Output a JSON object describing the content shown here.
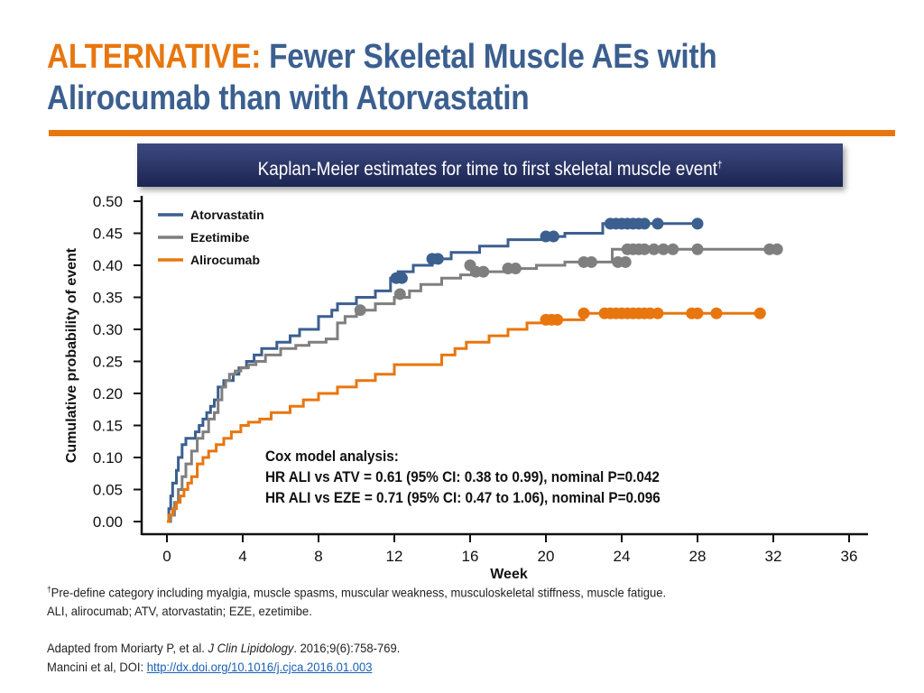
{
  "title": {
    "prefix": "ALTERNATIVE:",
    "text": "Fewer Skeletal Muscle AEs with Alirocumab than with Atorvastatin"
  },
  "banner": {
    "text": "Kaplan-Meier estimates for time to first skeletal muscle event",
    "mark": "†"
  },
  "colors": {
    "accent": "#e8760f",
    "title_blue": "#3b5f8f",
    "banner_navy": "#27325f"
  },
  "chart_data": {
    "type": "line",
    "subtype": "kaplan-meier step plot with censor markers",
    "xlabel": "Week",
    "ylabel": "Cumulative probability of event",
    "xlim": [
      0,
      37
    ],
    "ylim": [
      0,
      0.5
    ],
    "xticks": [
      0,
      4,
      8,
      12,
      16,
      20,
      24,
      28,
      32,
      36
    ],
    "yticks": [
      0.0,
      0.05,
      0.1,
      0.15,
      0.2,
      0.25,
      0.3,
      0.35,
      0.4,
      0.45,
      0.5
    ],
    "grid": false,
    "legend_position": "top-left",
    "series": [
      {
        "name": "Atorvastatin",
        "color": "#3b5f8f",
        "x": [
          0,
          0.1,
          0.2,
          0.3,
          0.5,
          0.6,
          0.8,
          1.0,
          1.3,
          1.5,
          1.7,
          1.9,
          2.1,
          2.3,
          2.5,
          2.7,
          3.0,
          3.2,
          3.5,
          3.8,
          4.2,
          4.6,
          5.0,
          5.8,
          6.5,
          7.0,
          8.0,
          8.7,
          9.0,
          10.0,
          11.0,
          11.8,
          12.2,
          13.0,
          14.0,
          15.0,
          16.5,
          18.0,
          20.0,
          21.0,
          23.0,
          28.2
        ],
        "y": [
          0,
          0.02,
          0.04,
          0.06,
          0.08,
          0.1,
          0.12,
          0.13,
          0.13,
          0.14,
          0.15,
          0.16,
          0.17,
          0.18,
          0.19,
          0.21,
          0.22,
          0.22,
          0.23,
          0.24,
          0.25,
          0.26,
          0.27,
          0.28,
          0.29,
          0.3,
          0.32,
          0.33,
          0.34,
          0.35,
          0.36,
          0.38,
          0.39,
          0.4,
          0.41,
          0.42,
          0.43,
          0.44,
          0.445,
          0.45,
          0.465,
          0.465
        ],
        "censored": [
          12.1,
          12.4,
          14.0,
          14.3,
          20.0,
          20.4,
          23.4,
          23.7,
          24.0,
          24.3,
          24.6,
          24.9,
          25.2,
          25.9,
          28.0
        ],
        "censored_y": [
          0.38,
          0.38,
          0.41,
          0.41,
          0.445,
          0.445,
          0.465,
          0.465,
          0.465,
          0.465,
          0.465,
          0.465,
          0.465,
          0.465,
          0.465
        ]
      },
      {
        "name": "Ezetimibe",
        "color": "#7f7f7f",
        "x": [
          0,
          0.2,
          0.4,
          0.6,
          0.8,
          1.0,
          1.3,
          1.6,
          1.9,
          2.2,
          2.5,
          2.7,
          2.9,
          3.1,
          3.3,
          3.6,
          3.9,
          4.3,
          4.7,
          5.2,
          6.0,
          6.8,
          7.5,
          8.4,
          9.0,
          9.4,
          10.0,
          11.0,
          12.0,
          12.8,
          13.4,
          14.5,
          15.5,
          16.5,
          18.0,
          19.5,
          21.0,
          23.5,
          32.3
        ],
        "y": [
          0,
          0.01,
          0.03,
          0.05,
          0.07,
          0.09,
          0.11,
          0.13,
          0.14,
          0.16,
          0.17,
          0.19,
          0.21,
          0.22,
          0.23,
          0.235,
          0.24,
          0.245,
          0.25,
          0.26,
          0.27,
          0.275,
          0.28,
          0.285,
          0.31,
          0.32,
          0.33,
          0.34,
          0.35,
          0.36,
          0.37,
          0.38,
          0.385,
          0.39,
          0.395,
          0.4,
          0.405,
          0.425,
          0.425
        ],
        "censored": [
          10.2,
          12.3,
          16.0,
          16.3,
          16.7,
          18.0,
          18.4,
          22.0,
          22.4,
          23.8,
          24.2,
          24.3,
          24.6,
          24.9,
          25.2,
          25.7,
          26.2,
          26.7,
          28.0,
          31.8,
          32.2
        ],
        "censored_y": [
          0.33,
          0.355,
          0.4,
          0.39,
          0.39,
          0.395,
          0.395,
          0.405,
          0.405,
          0.405,
          0.405,
          0.425,
          0.425,
          0.425,
          0.425,
          0.425,
          0.425,
          0.425,
          0.425,
          0.425,
          0.425
        ]
      },
      {
        "name": "Alirocumab",
        "color": "#e8760f",
        "x": [
          0,
          0.1,
          0.3,
          0.5,
          0.7,
          0.9,
          1.1,
          1.3,
          1.6,
          1.9,
          2.2,
          2.6,
          3.0,
          3.4,
          3.9,
          4.3,
          4.9,
          5.5,
          6.5,
          7.2,
          8.0,
          9.0,
          10.0,
          11.0,
          12.0,
          14.5,
          15.2,
          15.8,
          17.0,
          18.0,
          19.0,
          20.0,
          22.0,
          31.5
        ],
        "y": [
          0,
          0.01,
          0.02,
          0.03,
          0.04,
          0.05,
          0.06,
          0.07,
          0.09,
          0.1,
          0.11,
          0.12,
          0.13,
          0.14,
          0.15,
          0.155,
          0.16,
          0.17,
          0.18,
          0.19,
          0.2,
          0.21,
          0.22,
          0.23,
          0.245,
          0.26,
          0.27,
          0.28,
          0.29,
          0.3,
          0.31,
          0.315,
          0.325,
          0.325
        ],
        "censored": [
          20.0,
          20.3,
          20.6,
          22.0,
          23.1,
          23.4,
          23.7,
          24.0,
          24.3,
          24.6,
          24.9,
          25.2,
          25.5,
          25.9,
          27.7,
          28.0,
          29.0,
          31.3
        ],
        "censored_y": [
          0.315,
          0.315,
          0.315,
          0.325,
          0.325,
          0.325,
          0.325,
          0.325,
          0.325,
          0.325,
          0.325,
          0.325,
          0.325,
          0.325,
          0.325,
          0.325,
          0.325,
          0.325
        ]
      }
    ],
    "annotation": [
      "Cox model analysis:",
      "HR ALI vs ATV = 0.61 (95% CI: 0.38 to 0.99), nominal P=0.042",
      "HR ALI vs EZE = 0.71 (95% CI: 0.47 to 1.06), nominal P=0.096"
    ]
  },
  "footnotes": {
    "line1_mark": "†",
    "line1": "Pre-define category including myalgia, muscle spasms, muscular weakness, musculoskeletal stiffness, muscle fatigue.",
    "line2": "ALI, alirocumab; ATV, atorvastatin; EZE, ezetimibe.",
    "ref1_prefix": "Adapted from Moriarty P, et al. ",
    "ref1_journal": "J Clin Lipidology",
    "ref1_suffix": ". 2016;9(6):758-769.",
    "ref2_prefix": "Mancini et al, DOI: ",
    "ref2_link": "http://dx.doi.org/10.1016/j.cjca.2016.01.003"
  }
}
